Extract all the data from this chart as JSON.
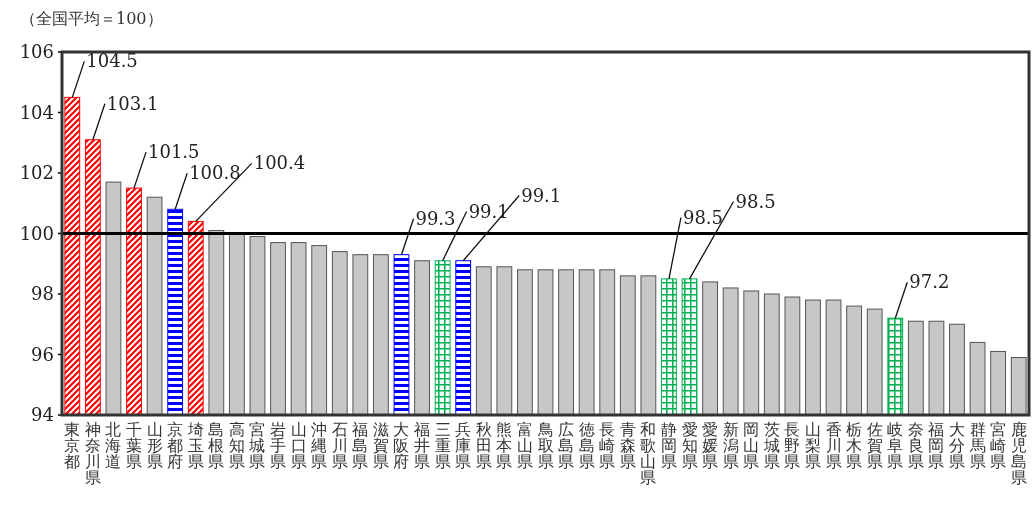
{
  "chart_data": {
    "type": "bar",
    "ylabel": "（全国平均＝100）",
    "categories": [
      "東京都",
      "神奈川県",
      "北海道",
      "千葉県",
      "山形県",
      "京都府",
      "埼玉県",
      "島根県",
      "高知県",
      "宮城県",
      "岩手県",
      "山口県",
      "沖縄県",
      "石川県",
      "福島県",
      "滋賀県",
      "大阪府",
      "福井県",
      "三重県",
      "兵庫県",
      "秋田県",
      "熊本県",
      "富山県",
      "鳥取県",
      "広島県",
      "徳島県",
      "長崎県",
      "青森県",
      "和歌山県",
      "静岡県",
      "愛知県",
      "愛媛県",
      "新潟県",
      "岡山県",
      "茨城県",
      "長野県",
      "山梨県",
      "香川県",
      "栃木県",
      "佐賀県",
      "岐阜県",
      "奈良県",
      "福岡県",
      "大分県",
      "群馬県",
      "宮崎県",
      "鹿児島県"
    ],
    "values": [
      104.5,
      103.1,
      101.7,
      101.5,
      101.2,
      100.8,
      100.4,
      100.1,
      100.0,
      99.9,
      99.7,
      99.7,
      99.6,
      99.4,
      99.3,
      99.3,
      99.3,
      99.1,
      99.1,
      99.1,
      98.9,
      98.9,
      98.8,
      98.8,
      98.8,
      98.8,
      98.8,
      98.6,
      98.6,
      98.5,
      98.5,
      98.4,
      98.2,
      98.1,
      98.0,
      97.9,
      97.8,
      97.8,
      97.6,
      97.5,
      97.2,
      97.1,
      97.1,
      97.0,
      96.4,
      96.1,
      95.9
    ],
    "colors": [
      "#ff0000",
      "#ff0000",
      "#c6c7c9",
      "#ff0000",
      "#c6c7c9",
      "#0000ff",
      "#ff0000",
      "#c6c7c9",
      "#c6c7c9",
      "#c6c7c9",
      "#c6c7c9",
      "#c6c7c9",
      "#c6c7c9",
      "#c6c7c9",
      "#c6c7c9",
      "#c6c7c9",
      "#0000ff",
      "#c6c7c9",
      "#00b050",
      "#0000ff",
      "#c6c7c9",
      "#c6c7c9",
      "#c6c7c9",
      "#c6c7c9",
      "#c6c7c9",
      "#c6c7c9",
      "#c6c7c9",
      "#c6c7c9",
      "#c6c7c9",
      "#00b050",
      "#00b050",
      "#c6c7c9",
      "#c6c7c9",
      "#c6c7c9",
      "#c6c7c9",
      "#c6c7c9",
      "#c6c7c9",
      "#c6c7c9",
      "#c6c7c9",
      "#c6c7c9",
      "#00b050",
      "#c6c7c9",
      "#c6c7c9",
      "#c6c7c9",
      "#c6c7c9",
      "#c6c7c9",
      "#c6c7c9"
    ],
    "value_labels": [
      "104.5",
      "103.1",
      null,
      "101.5",
      null,
      "100.8",
      "100.4",
      null,
      null,
      null,
      null,
      null,
      null,
      null,
      null,
      null,
      "99.3",
      null,
      "99.1",
      "99.1",
      null,
      null,
      null,
      null,
      null,
      null,
      null,
      null,
      null,
      "98.5",
      "98.5",
      null,
      null,
      null,
      null,
      null,
      null,
      null,
      null,
      null,
      "97.2",
      null,
      null,
      null,
      null,
      null,
      null
    ],
    "ylim": [
      94,
      106
    ],
    "yticks": [
      94,
      96,
      98,
      100,
      102,
      104,
      106
    ],
    "ref_lines": [
      {
        "axis": "y",
        "value": 100,
        "color": "#000000"
      }
    ],
    "grid": false
  }
}
